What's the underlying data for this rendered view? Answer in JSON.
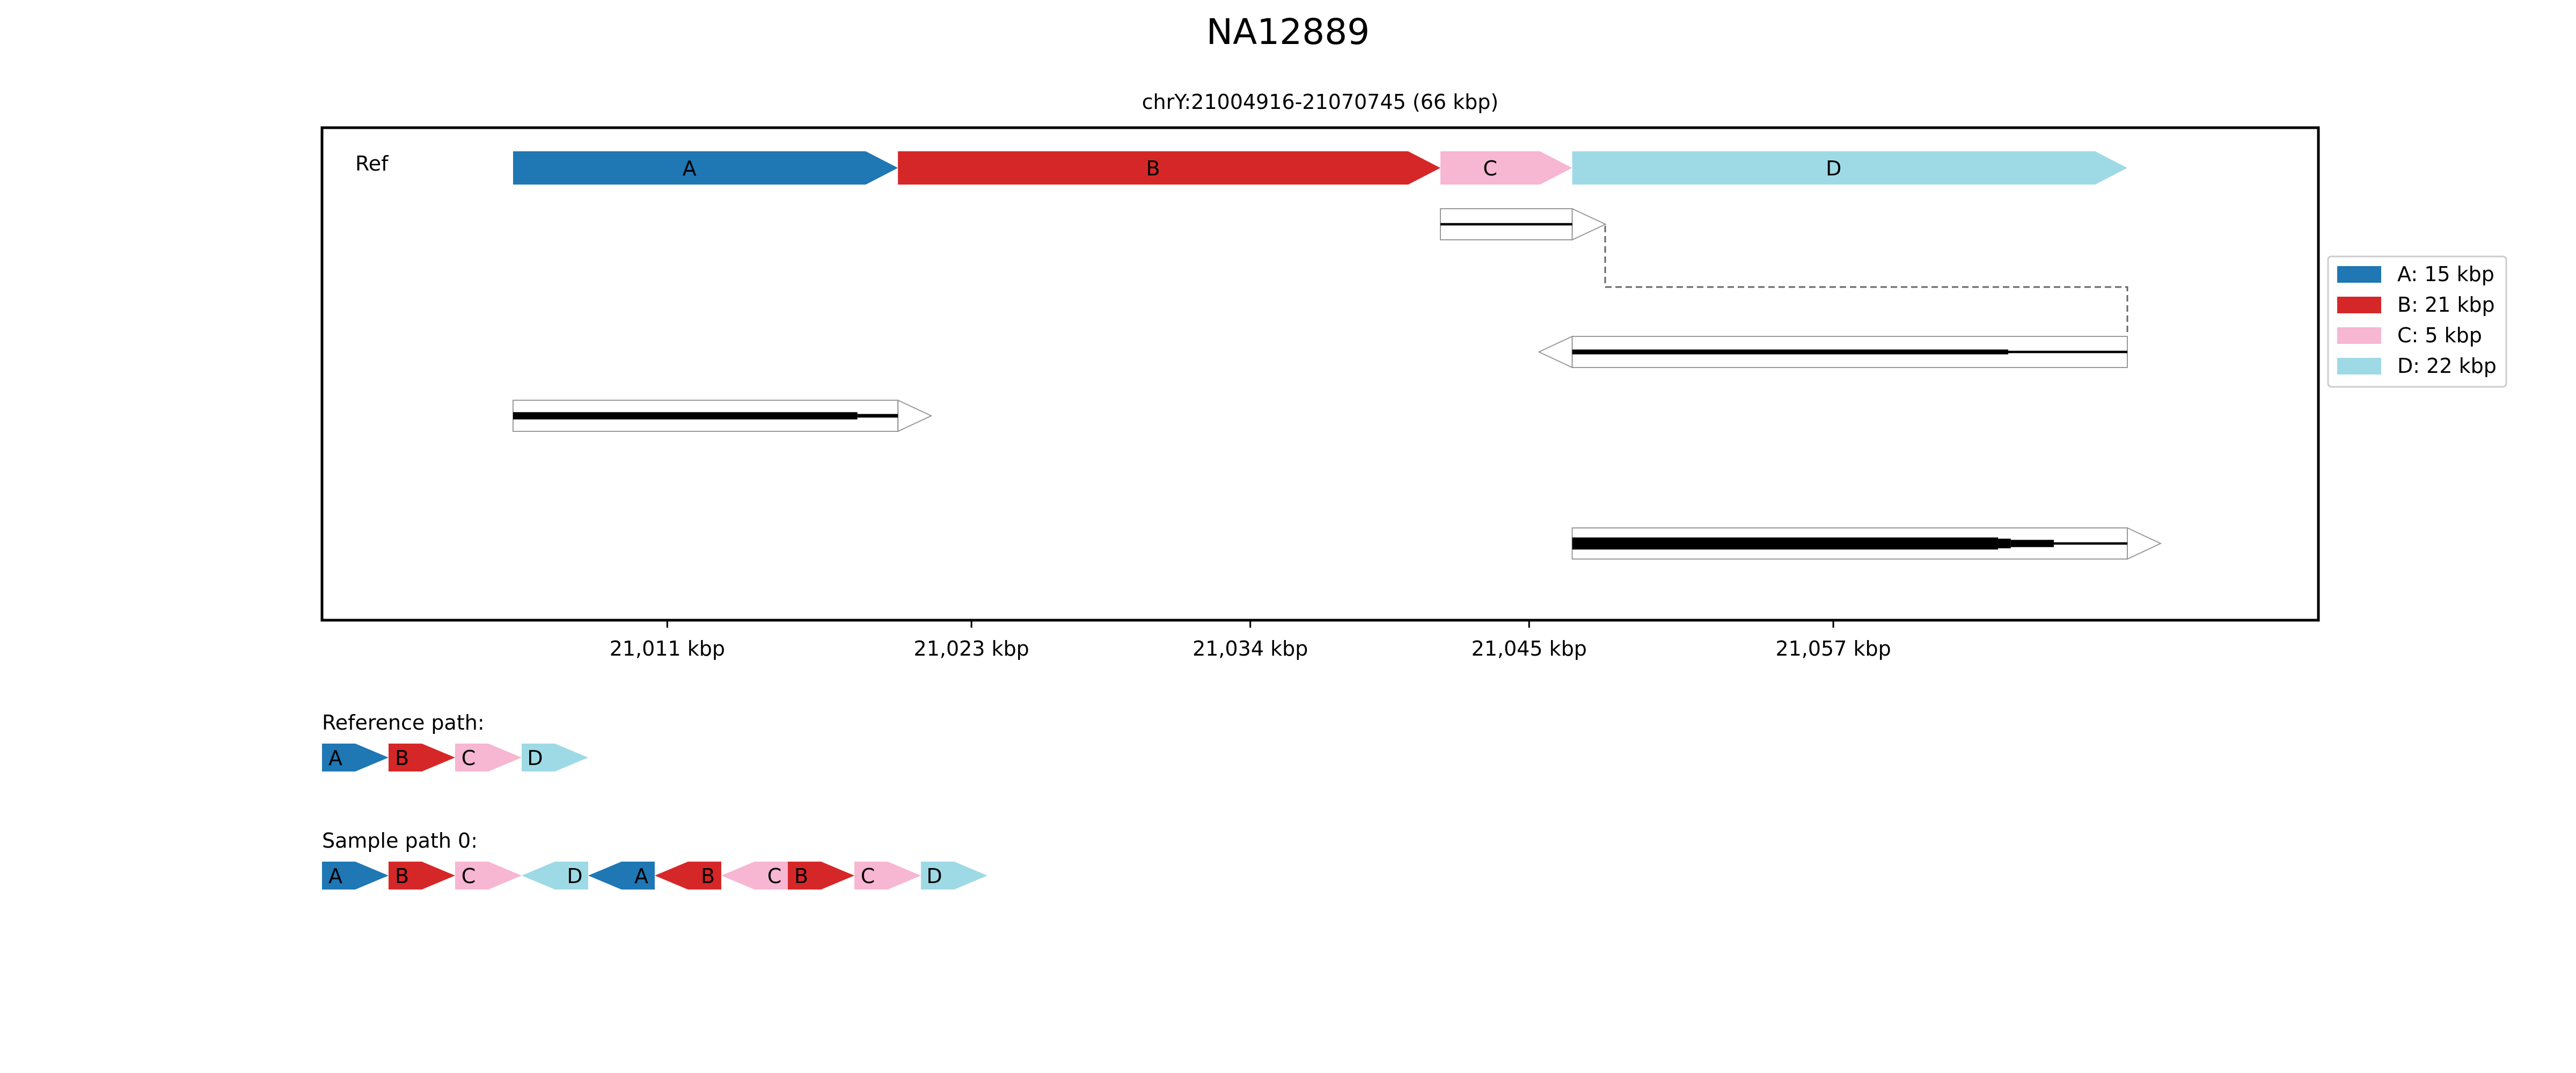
{
  "title": "NA12889",
  "region": "chrY:21004916-21070745 (66 kbp)",
  "colors": {
    "A": "#1f77b4",
    "B": "#d62728",
    "C": "#f7b6d2",
    "D": "#9edae5"
  },
  "ref_label": "Ref",
  "ref_segments": [
    {
      "id": "A",
      "label": "A",
      "start": 21004916,
      "end": 21020100
    },
    {
      "id": "B",
      "label": "B",
      "start": 21020100,
      "end": 21041500
    },
    {
      "id": "C",
      "label": "C",
      "start": 21041500,
      "end": 21046700
    },
    {
      "id": "D",
      "label": "D",
      "start": 21046700,
      "end": 21068600
    }
  ],
  "x_ticks": [
    "21,011 kbp",
    "21,023 kbp",
    "21,034 kbp",
    "21,045 kbp",
    "21,057 kbp"
  ],
  "tick_values": [
    21011,
    21023,
    21034,
    21045,
    21057
  ],
  "legend": [
    "A: 15 kbp",
    "B: 21 kbp",
    "C: 5 kbp",
    "D: 22 kbp"
  ],
  "reference_path_label": "Reference path:",
  "reference_path": [
    {
      "id": "A",
      "dir": "+"
    },
    {
      "id": "B",
      "dir": "+"
    },
    {
      "id": "C",
      "dir": "+"
    },
    {
      "id": "D",
      "dir": "+"
    }
  ],
  "sample_path_label": "Sample path 0:",
  "sample_path": [
    {
      "id": "A",
      "dir": "+"
    },
    {
      "id": "B",
      "dir": "+"
    },
    {
      "id": "C",
      "dir": "+"
    },
    {
      "id": "D",
      "dir": "-"
    },
    {
      "id": "A",
      "dir": "-"
    },
    {
      "id": "B",
      "dir": "-"
    },
    {
      "id": "C",
      "dir": "-"
    },
    {
      "id": "B",
      "dir": "+"
    },
    {
      "id": "C",
      "dir": "+"
    },
    {
      "id": "D",
      "dir": "+"
    }
  ],
  "alignments": [
    {
      "start": 21041500,
      "end": 21046700,
      "dir": "+",
      "row": 0,
      "coverage": [
        [
          21041500,
          21046700,
          1
        ]
      ]
    },
    {
      "start": 21046700,
      "end": 21068600,
      "dir": "-",
      "row": 2,
      "coverage": [
        [
          21046700,
          21063900,
          2
        ],
        [
          21063900,
          21068600,
          1
        ]
      ]
    },
    {
      "start": 21004916,
      "end": 21020100,
      "dir": "+",
      "row": 3,
      "coverage": [
        [
          21004916,
          21018500,
          3
        ],
        [
          21018500,
          21020100,
          1.5
        ]
      ]
    },
    {
      "start": 21046700,
      "end": 21068600,
      "dir": "+",
      "row": 5,
      "coverage": [
        [
          21046700,
          21063500,
          5
        ],
        [
          21063500,
          21064000,
          4
        ],
        [
          21064000,
          21065700,
          3
        ],
        [
          21065700,
          21068600,
          1
        ]
      ]
    }
  ],
  "links": [
    {
      "from_x": 21048000,
      "from_row": 0,
      "to_x": 21068600,
      "to_row": 2
    }
  ]
}
